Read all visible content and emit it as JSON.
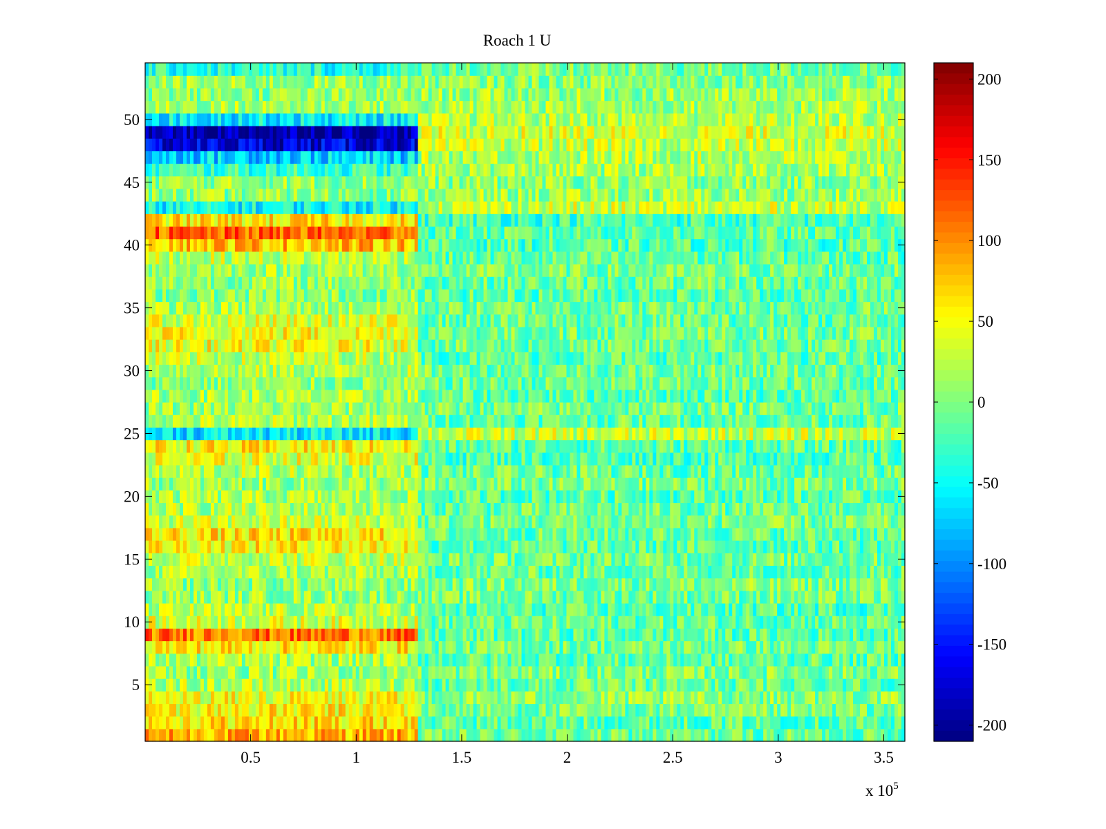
{
  "chart_data": {
    "type": "heatmap",
    "title": "Roach 1 U",
    "xlabel": "",
    "ylabel": "",
    "xlim": [
      0,
      360000
    ],
    "ylim": [
      0.5,
      54.5
    ],
    "rows": 54,
    "x_split": 130000,
    "x_ticks": [
      50000,
      100000,
      150000,
      200000,
      250000,
      300000,
      350000
    ],
    "x_tick_labels": [
      "0.5",
      "1",
      "1.5",
      "2",
      "2.5",
      "3",
      "3.5"
    ],
    "x_exponent_base": "x 10",
    "x_exponent_power": "5",
    "y_ticks": [
      5,
      10,
      15,
      20,
      25,
      30,
      35,
      40,
      45,
      50
    ],
    "y_tick_labels": [
      "5",
      "10",
      "15",
      "20",
      "25",
      "30",
      "35",
      "40",
      "45",
      "50"
    ],
    "colormap": "jet",
    "clim": [
      -210,
      210
    ],
    "colorbar_ticks": [
      200,
      150,
      100,
      50,
      0,
      -50,
      -100,
      -150,
      -200
    ],
    "colorbar_tick_labels": [
      "200",
      "150",
      "100",
      "50",
      "0",
      "-50",
      "-100",
      "-150",
      "-200"
    ],
    "row_mean_left_segment": [
      85,
      65,
      55,
      45,
      20,
      10,
      15,
      60,
      110,
      35,
      20,
      10,
      5,
      15,
      30,
      55,
      60,
      30,
      20,
      15,
      10,
      20,
      40,
      55,
      -60,
      20,
      10,
      15,
      5,
      20,
      25,
      45,
      50,
      35,
      15,
      5,
      10,
      15,
      25,
      80,
      115,
      60,
      -50,
      5,
      10,
      -30,
      -70,
      -170,
      -190,
      -55,
      15,
      5,
      10,
      -40
    ],
    "row_mean_right_segment": [
      -10,
      -15,
      -5,
      5,
      -10,
      0,
      -15,
      -5,
      -15,
      -10,
      -20,
      -5,
      0,
      -10,
      -5,
      -15,
      -10,
      -5,
      -10,
      -15,
      -5,
      -10,
      -20,
      -15,
      30,
      -10,
      -5,
      -15,
      -10,
      -5,
      -15,
      -10,
      -5,
      -10,
      -5,
      -15,
      -10,
      -5,
      -15,
      -20,
      -15,
      -25,
      30,
      10,
      5,
      15,
      20,
      25,
      35,
      20,
      15,
      10,
      5,
      -5
    ],
    "noise_amplitude": 40
  }
}
